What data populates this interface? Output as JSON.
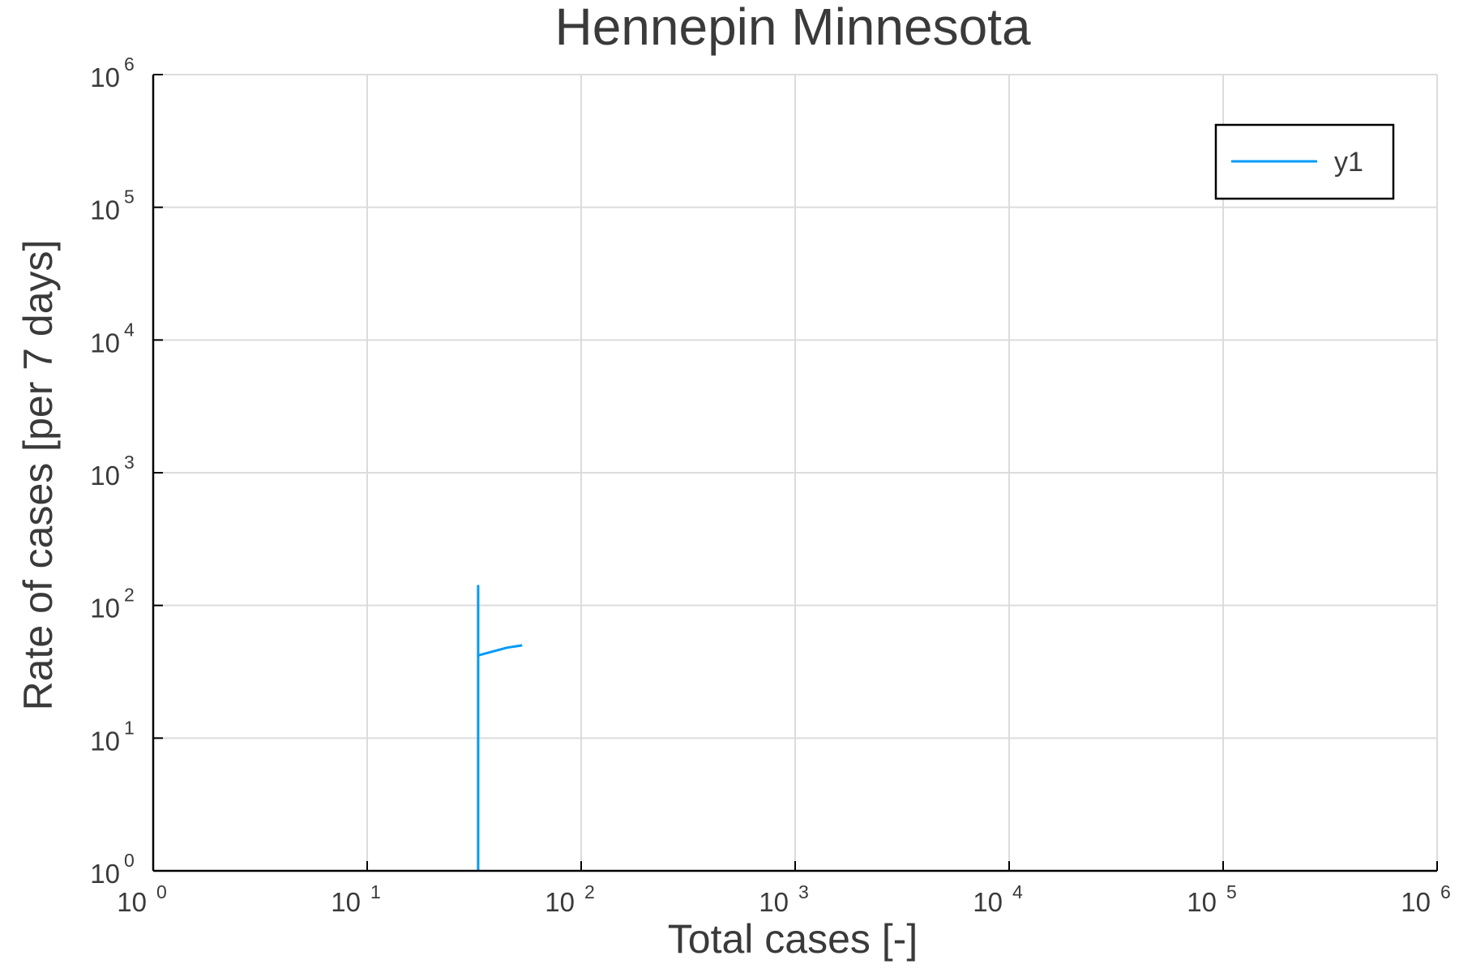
{
  "chart_data": {
    "type": "line",
    "title": "Hennepin Minnesota",
    "xlabel": "Total cases [-]",
    "ylabel": "Rate of cases [per 7 days]",
    "xscale": "log",
    "yscale": "log",
    "xlim": [
      1,
      1000000
    ],
    "ylim": [
      1,
      1000000
    ],
    "xticks": [
      {
        "base": "10",
        "exp": "0",
        "value": 1
      },
      {
        "base": "10",
        "exp": "1",
        "value": 10
      },
      {
        "base": "10",
        "exp": "2",
        "value": 100
      },
      {
        "base": "10",
        "exp": "3",
        "value": 1000
      },
      {
        "base": "10",
        "exp": "4",
        "value": 10000
      },
      {
        "base": "10",
        "exp": "5",
        "value": 100000
      },
      {
        "base": "10",
        "exp": "6",
        "value": 1000000
      }
    ],
    "yticks": [
      {
        "base": "10",
        "exp": "0",
        "value": 1
      },
      {
        "base": "10",
        "exp": "1",
        "value": 10
      },
      {
        "base": "10",
        "exp": "2",
        "value": 100
      },
      {
        "base": "10",
        "exp": "3",
        "value": 1000
      },
      {
        "base": "10",
        "exp": "4",
        "value": 10000
      },
      {
        "base": "10",
        "exp": "5",
        "value": 100000
      },
      {
        "base": "10",
        "exp": "6",
        "value": 1000000
      }
    ],
    "grid": true,
    "legend_position": "top-right",
    "series": [
      {
        "name": "y1",
        "color": "#009af9",
        "x": [
          33,
          33,
          33,
          45,
          53
        ],
        "y": [
          1,
          140,
          42,
          48,
          50
        ]
      }
    ]
  }
}
